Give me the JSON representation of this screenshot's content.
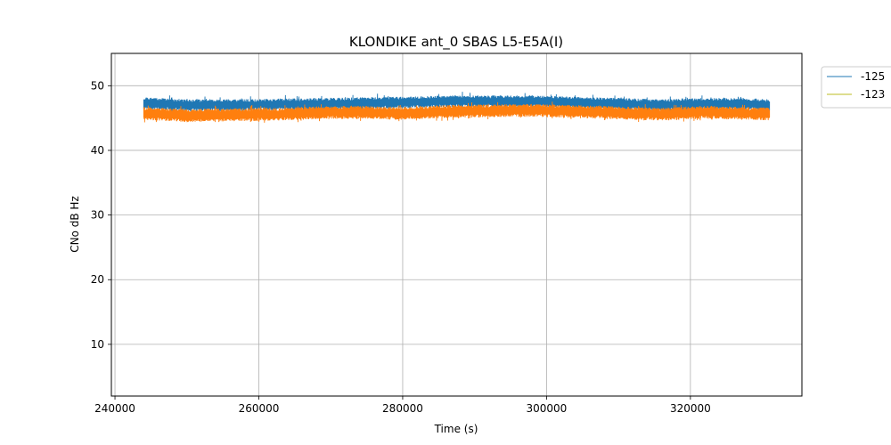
{
  "chart_data": {
    "type": "line",
    "title": "KLONDIKE ant_0 SBAS L5-E5A(I)",
    "xlabel": "Time (s)",
    "ylabel": "CNo dB Hz",
    "xlim": [
      239500,
      335500
    ],
    "ylim": [
      2,
      55
    ],
    "xticks": [
      240000,
      260000,
      280000,
      300000,
      320000
    ],
    "yticks": [
      10,
      20,
      30,
      40,
      50
    ],
    "grid": true,
    "legend_position": "upper-right-outside",
    "series": [
      {
        "name": "-125",
        "color": "#1f77b4",
        "x": [
          244000,
          250000,
          256000,
          262000,
          268000,
          274000,
          280000,
          286000,
          292000,
          298000,
          304000,
          310000,
          316000,
          322000,
          328000,
          331000
        ],
        "y": [
          47.3,
          47.0,
          47.0,
          47.1,
          47.2,
          47.3,
          47.4,
          47.6,
          47.6,
          47.6,
          47.4,
          47.2,
          47.0,
          47.2,
          47.2,
          47.0
        ],
        "band": [
          0.9,
          0.9
        ]
      },
      {
        "name": "-123",
        "color": "#ff7f0e",
        "legend_color": "#bcbd22",
        "x": [
          244000,
          250000,
          256000,
          262000,
          268000,
          274000,
          280000,
          286000,
          292000,
          298000,
          304000,
          310000,
          316000,
          322000,
          328000,
          331000
        ],
        "y": [
          45.7,
          45.4,
          45.5,
          45.6,
          45.8,
          45.9,
          45.7,
          46.0,
          46.1,
          46.2,
          46.0,
          45.8,
          45.6,
          45.9,
          45.7,
          45.6
        ],
        "band": [
          1.0,
          1.0
        ]
      }
    ]
  }
}
